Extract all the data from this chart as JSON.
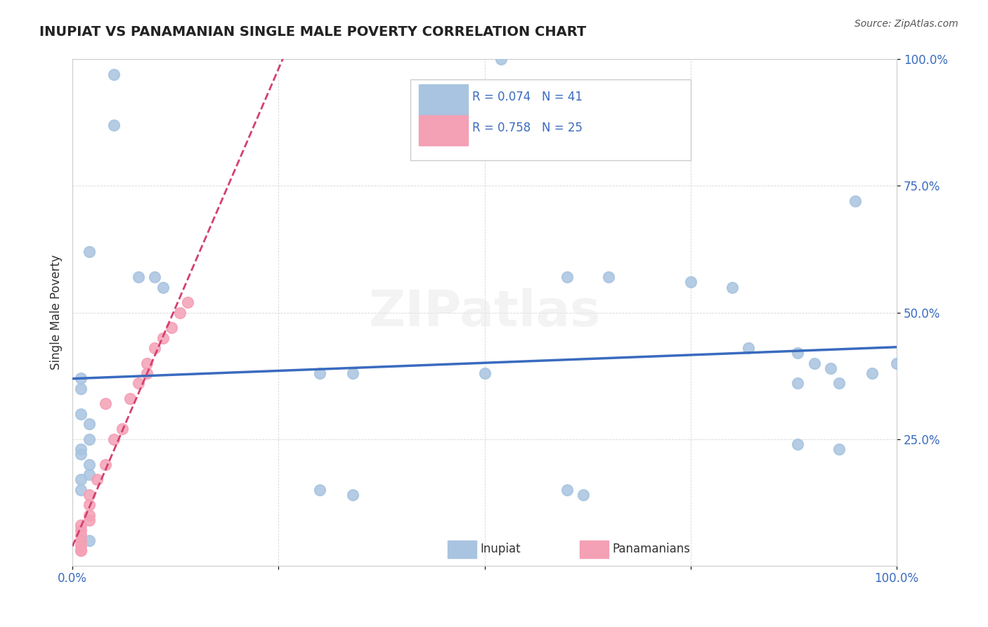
{
  "title": "INUPIAT VS PANAMANIAN SINGLE MALE POVERTY CORRELATION CHART",
  "source": "Source: ZipAtlas.com",
  "xlabel": "",
  "ylabel": "Single Male Poverty",
  "inupiat_x": [
    0.05,
    0.05,
    0.02,
    0.08,
    0.1,
    0.11,
    0.01,
    0.01,
    0.01,
    0.02,
    0.02,
    0.01,
    0.01,
    0.02,
    0.02,
    0.01,
    0.01,
    0.02,
    0.3,
    0.34,
    0.3,
    0.34,
    0.75,
    0.8,
    0.6,
    0.65,
    0.82,
    0.88,
    0.9,
    0.92,
    0.88,
    0.93,
    0.95,
    0.97,
    0.88,
    0.93,
    0.6,
    0.62,
    0.5,
    1.0,
    0.52
  ],
  "inupiat_y": [
    0.97,
    0.87,
    0.62,
    0.57,
    0.57,
    0.55,
    0.37,
    0.35,
    0.3,
    0.28,
    0.25,
    0.23,
    0.22,
    0.2,
    0.18,
    0.17,
    0.15,
    0.05,
    0.38,
    0.38,
    0.15,
    0.14,
    0.56,
    0.55,
    0.57,
    0.57,
    0.43,
    0.42,
    0.4,
    0.39,
    0.36,
    0.36,
    0.72,
    0.38,
    0.24,
    0.23,
    0.15,
    0.14,
    0.38,
    0.4,
    1.0
  ],
  "panamanian_x": [
    0.01,
    0.01,
    0.01,
    0.01,
    0.01,
    0.01,
    0.01,
    0.02,
    0.02,
    0.02,
    0.02,
    0.03,
    0.04,
    0.05,
    0.06,
    0.07,
    0.08,
    0.09,
    0.09,
    0.1,
    0.11,
    0.12,
    0.13,
    0.14,
    0.04
  ],
  "panamanian_y": [
    0.03,
    0.03,
    0.04,
    0.05,
    0.06,
    0.07,
    0.08,
    0.09,
    0.1,
    0.12,
    0.14,
    0.17,
    0.2,
    0.25,
    0.27,
    0.33,
    0.36,
    0.38,
    0.4,
    0.43,
    0.45,
    0.47,
    0.5,
    0.52,
    0.32
  ],
  "R_inupiat": 0.074,
  "N_inupiat": 41,
  "R_panamanian": 0.758,
  "N_panamanian": 25,
  "inupiat_color": "#a8c4e0",
  "panamanian_color": "#f4a0b5",
  "inupiat_line_color": "#3a6bbf",
  "panamanian_line_color": "#d44070",
  "panamanian_dashed_color": "#e8a0b0",
  "legend_R_color": "#3a6bbf",
  "xlim": [
    0,
    1
  ],
  "ylim": [
    0,
    1
  ],
  "xtick_labels": [
    "0.0%",
    "100.0%"
  ],
  "ytick_labels": [
    "25.0%",
    "50.0%",
    "75.0%",
    "100.0%"
  ],
  "ytick_positions": [
    0.25,
    0.5,
    0.75,
    1.0
  ],
  "watermark": "ZIPatlas",
  "background_color": "#ffffff"
}
